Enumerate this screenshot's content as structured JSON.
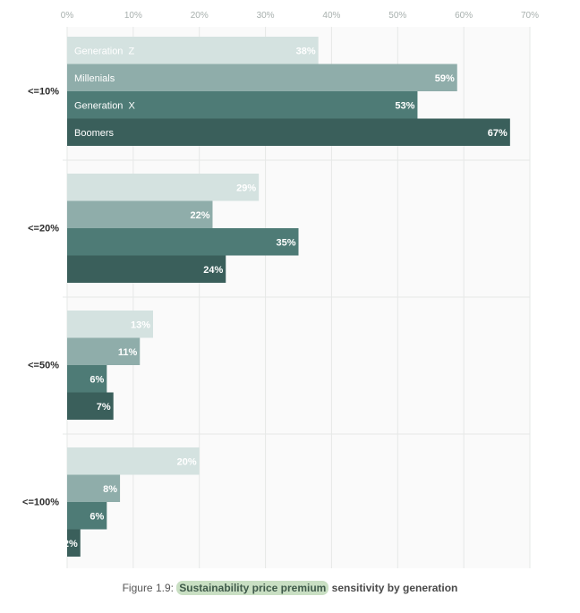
{
  "chart_data": {
    "type": "bar",
    "orientation": "horizontal",
    "categories": [
      "<=10%",
      "<=20%",
      "<=50%",
      "<=100%"
    ],
    "series": [
      {
        "name": "Generation  Z",
        "values": [
          38,
          29,
          13,
          20
        ],
        "color": "#d4e2e0"
      },
      {
        "name": "Millenials",
        "values": [
          59,
          22,
          11,
          8
        ],
        "color": "#8fadaa"
      },
      {
        "name": "Generation  X",
        "values": [
          53,
          35,
          6,
          6
        ],
        "color": "#4e7b76"
      },
      {
        "name": "Boomers",
        "values": [
          67,
          24,
          7,
          2
        ],
        "color": "#3a5f5b"
      }
    ],
    "value_suffix": "%",
    "xlim": [
      0,
      70
    ],
    "x_ticks": [
      "0%",
      "10%",
      "20%",
      "30%",
      "40%",
      "50%",
      "60%",
      "70%"
    ],
    "grid": true,
    "legend": "series names inside first group bars"
  },
  "caption": {
    "prefix": "Figure 1.9: ",
    "highlight": "Sustainability price premium",
    "suffix": " sensitivity by generation"
  }
}
